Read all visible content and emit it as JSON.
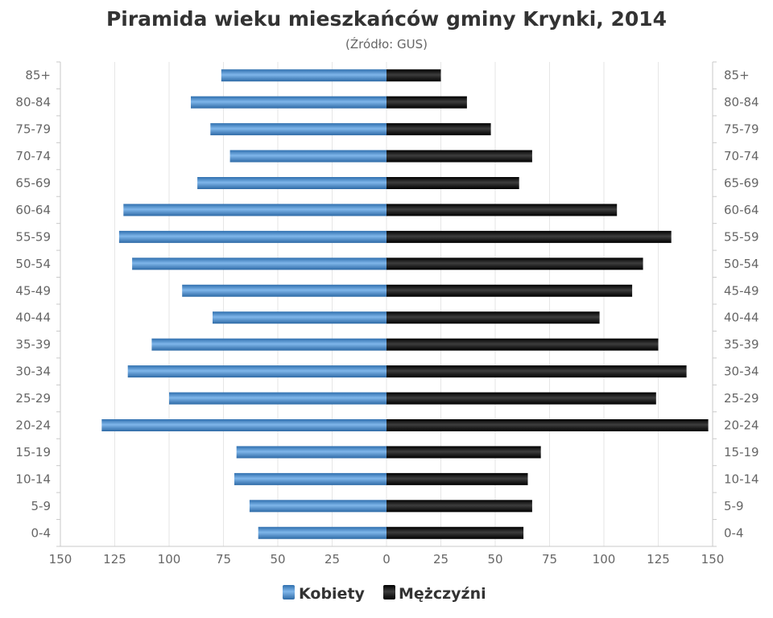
{
  "chart_data": {
    "type": "bar",
    "orientation": "horizontal",
    "title": "Piramida wieku mieszkańców gminy Krynki, 2014",
    "subtitle": "(Źródło: GUS)",
    "categories": [
      "85+",
      "80-84",
      "75-79",
      "70-74",
      "65-69",
      "60-64",
      "55-59",
      "50-54",
      "45-49",
      "40-44",
      "35-39",
      "30-34",
      "25-29",
      "20-24",
      "15-19",
      "10-14",
      "5-9",
      "0-4"
    ],
    "series": [
      {
        "name": "Kobiety",
        "color": "#4a8fd0",
        "direction": "left",
        "values": [
          76,
          90,
          81,
          72,
          87,
          121,
          123,
          117,
          94,
          80,
          108,
          119,
          100,
          131,
          69,
          70,
          63,
          59
        ]
      },
      {
        "name": "Mężczyźni",
        "color": "#1a1a1a",
        "direction": "right",
        "values": [
          25,
          37,
          48,
          67,
          61,
          106,
          131,
          118,
          113,
          98,
          125,
          138,
          124,
          148,
          71,
          65,
          67,
          63
        ]
      }
    ],
    "xlim": [
      -150,
      150
    ],
    "xticks": [
      -150,
      -125,
      -100,
      -75,
      -50,
      -25,
      0,
      25,
      50,
      75,
      100,
      125,
      150
    ],
    "xtick_labels": [
      "150",
      "125",
      "100",
      "75",
      "50",
      "25",
      "0",
      "25",
      "50",
      "75",
      "100",
      "125",
      "150"
    ],
    "grid": true,
    "legend_position": "bottom"
  }
}
